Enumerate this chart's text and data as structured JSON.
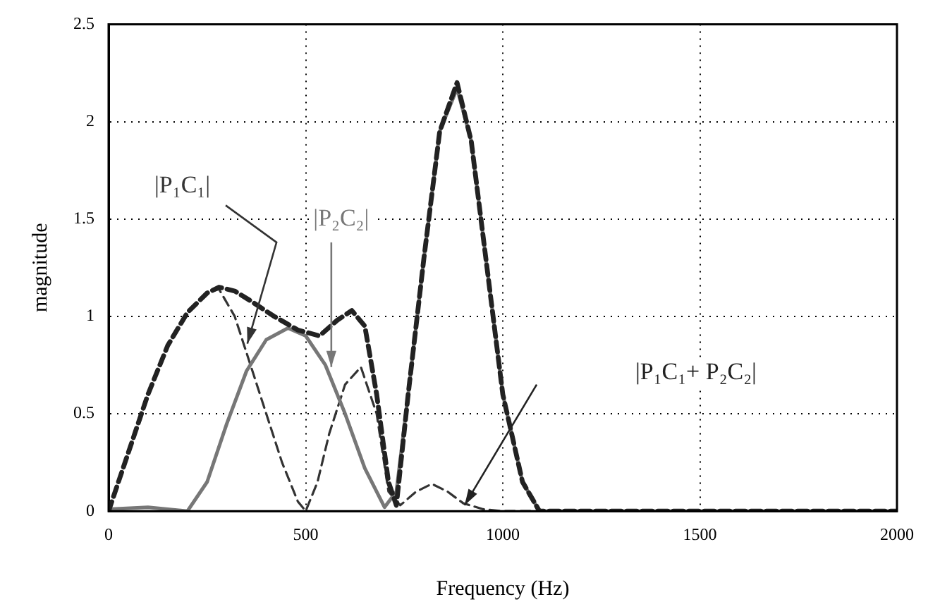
{
  "chart_data": {
    "type": "line",
    "xlabel": "Frequency (Hz)",
    "ylabel": "magnitude",
    "xlim": [
      0,
      2000
    ],
    "xticks": [
      0,
      500,
      1000,
      1500,
      2000
    ],
    "ylim": [
      0,
      2.5
    ],
    "yticks": [
      0,
      0.5,
      1,
      1.5,
      2,
      2.5
    ],
    "grid": true,
    "legend": false,
    "marker": "none",
    "series": [
      {
        "name": "|P₁C₁|",
        "color": "#333333",
        "line_style": "dashed",
        "x": [
          0,
          50,
          100,
          150,
          200,
          250,
          280,
          320,
          360,
          400,
          440,
          480,
          500,
          530,
          560,
          600,
          640,
          680,
          710,
          740,
          780,
          820,
          860,
          900,
          950,
          1000,
          1500,
          2000
        ],
        "values": [
          0,
          0.3,
          0.6,
          0.85,
          1.02,
          1.12,
          1.14,
          1.0,
          0.75,
          0.5,
          0.25,
          0.05,
          0,
          0.15,
          0.4,
          0.65,
          0.74,
          0.5,
          0.1,
          0.03,
          0.1,
          0.14,
          0.1,
          0.04,
          0.01,
          0,
          0,
          0
        ]
      },
      {
        "name": "|P₂C₂|",
        "color": "#777777",
        "line_style": "solid",
        "x": [
          0,
          100,
          200,
          250,
          300,
          350,
          400,
          455,
          500,
          550,
          600,
          650,
          700,
          730,
          760,
          800,
          840,
          884,
          920,
          960,
          1000,
          1050,
          1093,
          1200,
          2000
        ],
        "values": [
          0.01,
          0.02,
          0,
          0.15,
          0.45,
          0.72,
          0.88,
          0.94,
          0.9,
          0.75,
          0.5,
          0.22,
          0.02,
          0.1,
          0.6,
          1.3,
          1.95,
          2.17,
          1.9,
          1.25,
          0.6,
          0.15,
          0,
          0,
          0
        ]
      },
      {
        "name": "|P₁C₁+ P₂C₂|",
        "color": "#222222",
        "line_style": "dashed",
        "x": [
          0,
          50,
          100,
          150,
          200,
          250,
          280,
          320,
          360,
          420,
          480,
          535,
          580,
          617,
          650,
          680,
          710,
          730,
          760,
          800,
          840,
          884,
          920,
          960,
          1000,
          1050,
          1093,
          1200,
          2000
        ],
        "values": [
          0,
          0.3,
          0.6,
          0.85,
          1.02,
          1.12,
          1.15,
          1.13,
          1.08,
          1.0,
          0.93,
          0.9,
          0.98,
          1.03,
          0.95,
          0.6,
          0.15,
          0.03,
          0.6,
          1.3,
          1.95,
          2.2,
          1.9,
          1.25,
          0.6,
          0.15,
          0,
          0,
          0
        ]
      }
    ]
  }
}
